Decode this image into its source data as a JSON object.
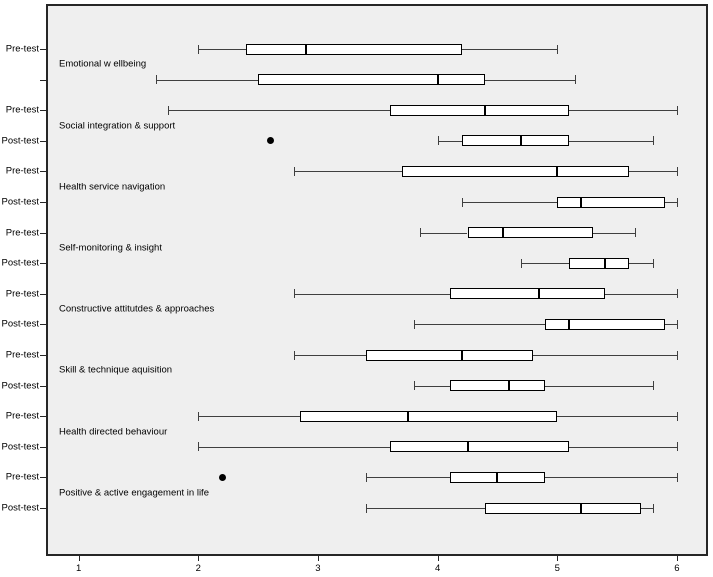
{
  "figure": {
    "background": "#ffffff",
    "plot_background": "#efefef",
    "line_color": "#000000",
    "whisker_color": "#3f3f3f",
    "border_color": "#262626"
  },
  "chart_data": {
    "type": "boxplot",
    "orientation": "horizontal",
    "title": "",
    "xlabel": "",
    "ylabel": "",
    "grid": false,
    "legend": "none",
    "xticks": [
      1,
      2,
      3,
      4,
      5,
      6
    ],
    "xlim": [
      0.727,
      6.26
    ],
    "row_labels": {
      "pre": "Pre-test",
      "post": "Post-test"
    },
    "groups": [
      {
        "category": "Emotional w ellbeing",
        "rows": [
          {
            "label": "Pre-test",
            "whisker_low": 2.0,
            "q1": 2.4,
            "median": 2.9,
            "q3": 4.2,
            "whisker_high": 5.0,
            "outliers": []
          },
          {
            "label": "",
            "whisker_low": 1.65,
            "q1": 2.5,
            "median": 4.0,
            "q3": 4.4,
            "whisker_high": 5.15,
            "outliers": []
          }
        ]
      },
      {
        "category": "Social integration & support",
        "rows": [
          {
            "label": "Pre-test",
            "whisker_low": 1.75,
            "q1": 3.6,
            "median": 4.4,
            "q3": 5.1,
            "whisker_high": 6.0,
            "outliers": []
          },
          {
            "label": "Post-test",
            "whisker_low": 4.0,
            "q1": 4.2,
            "median": 4.7,
            "q3": 5.1,
            "whisker_high": 5.8,
            "outliers": [
              2.6
            ]
          }
        ]
      },
      {
        "category": "Health service navigation",
        "rows": [
          {
            "label": "Pre-test",
            "whisker_low": 2.8,
            "q1": 3.7,
            "median": 5.0,
            "q3": 5.6,
            "whisker_high": 6.0,
            "outliers": []
          },
          {
            "label": "Post-test",
            "whisker_low": 4.2,
            "q1": 5.0,
            "median": 5.2,
            "q3": 5.9,
            "whisker_high": 6.0,
            "outliers": []
          }
        ]
      },
      {
        "category": "Self-monitoring & insight",
        "rows": [
          {
            "label": "Pre-test",
            "whisker_low": 3.85,
            "q1": 4.25,
            "median": 4.55,
            "q3": 5.3,
            "whisker_high": 5.65,
            "outliers": []
          },
          {
            "label": "Post-test",
            "whisker_low": 4.7,
            "q1": 5.1,
            "median": 5.4,
            "q3": 5.6,
            "whisker_high": 5.8,
            "outliers": []
          }
        ]
      },
      {
        "category": "Constructive attitutdes & approaches",
        "rows": [
          {
            "label": "Pre-test",
            "whisker_low": 2.8,
            "q1": 4.1,
            "median": 4.85,
            "q3": 5.4,
            "whisker_high": 6.0,
            "outliers": []
          },
          {
            "label": "Post-test",
            "whisker_low": 3.8,
            "q1": 4.9,
            "median": 5.1,
            "q3": 5.9,
            "whisker_high": 6.0,
            "outliers": []
          }
        ]
      },
      {
        "category": "Skill & technique aquisition",
        "rows": [
          {
            "label": "Pre-test",
            "whisker_low": 2.8,
            "q1": 3.4,
            "median": 4.2,
            "q3": 4.8,
            "whisker_high": 6.0,
            "outliers": []
          },
          {
            "label": "Post-test",
            "whisker_low": 3.8,
            "q1": 4.1,
            "median": 4.6,
            "q3": 4.9,
            "whisker_high": 5.8,
            "outliers": []
          }
        ]
      },
      {
        "category": "Health directed behaviour",
        "rows": [
          {
            "label": "Pre-test",
            "whisker_low": 2.0,
            "q1": 2.85,
            "median": 3.75,
            "q3": 5.0,
            "whisker_high": 6.0,
            "outliers": []
          },
          {
            "label": "Post-test",
            "whisker_low": 2.0,
            "q1": 3.6,
            "median": 4.25,
            "q3": 5.1,
            "whisker_high": 6.0,
            "outliers": []
          }
        ]
      },
      {
        "category": "Positive & active engagement in life",
        "rows": [
          {
            "label": "Pre-test",
            "whisker_low": 3.4,
            "q1": 4.1,
            "median": 4.5,
            "q3": 4.9,
            "whisker_high": 6.0,
            "outliers": [
              2.2
            ]
          },
          {
            "label": "Post-test",
            "whisker_low": 3.4,
            "q1": 4.4,
            "median": 5.2,
            "q3": 5.7,
            "whisker_high": 5.8,
            "outliers": []
          }
        ]
      }
    ]
  }
}
